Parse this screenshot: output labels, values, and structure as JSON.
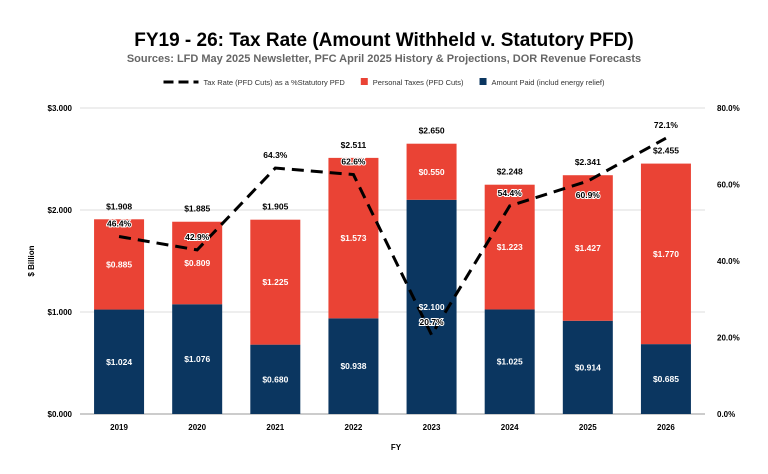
{
  "chart_data": {
    "type": "bar",
    "stacked": true,
    "title": "FY19 - 26: Tax Rate (Amount Withheld v. Statutory PFD)",
    "subtitle": "Sources: LFD May 2025 Newsletter, PFC April 2025 History & Projections, DOR Revenue Forecasts",
    "xlabel": "FY",
    "ylabel": "$ Billion",
    "categories": [
      "2019",
      "2020",
      "2021",
      "2022",
      "2023",
      "2024",
      "2025",
      "2026"
    ],
    "series": [
      {
        "name": "Amount Paid (includ energy relief)",
        "color": "#0b3660",
        "values": [
          1.024,
          1.076,
          0.68,
          0.938,
          2.1,
          1.025,
          0.914,
          0.685
        ],
        "labels": [
          "$1.024",
          "$1.076",
          "$0.680",
          "$0.938",
          "$2.100",
          "$1.025",
          "$0.914",
          "$0.685"
        ]
      },
      {
        "name": "Personal Taxes (PFD Cuts)",
        "color": "#ea4335",
        "values": [
          0.885,
          0.809,
          1.225,
          1.573,
          0.55,
          1.223,
          1.427,
          1.77
        ],
        "labels": [
          "$0.885",
          "$0.809",
          "$1.225",
          "$1.573",
          "$0.550",
          "$1.223",
          "$1.427",
          "$1.770"
        ]
      }
    ],
    "totals": [
      "$1.908",
      "$1.885",
      "$1.905",
      "$2.511",
      "$2.650",
      "$2.248",
      "$2.341",
      "$2.455"
    ],
    "line": {
      "name": "Tax Rate (PFD Cuts) as a %Statutory PFD",
      "color": "#000000",
      "axis": "right",
      "values": [
        46.4,
        42.9,
        64.3,
        62.6,
        20.7,
        54.4,
        60.9,
        72.1
      ],
      "labels": [
        "46.4%",
        "42.9%",
        "64.3%",
        "62.6%",
        "20.7%",
        "54.4%",
        "60.9%",
        "72.1%"
      ]
    },
    "ylim": [
      0,
      3
    ],
    "yticks": [
      "$0.000",
      "$1.000",
      "$2.000",
      "$3.000"
    ],
    "y2lim": [
      0,
      80
    ],
    "y2ticks": [
      "0.0%",
      "20.0%",
      "40.0%",
      "60.0%",
      "80.0%"
    ],
    "legend": "top",
    "grid": true
  }
}
